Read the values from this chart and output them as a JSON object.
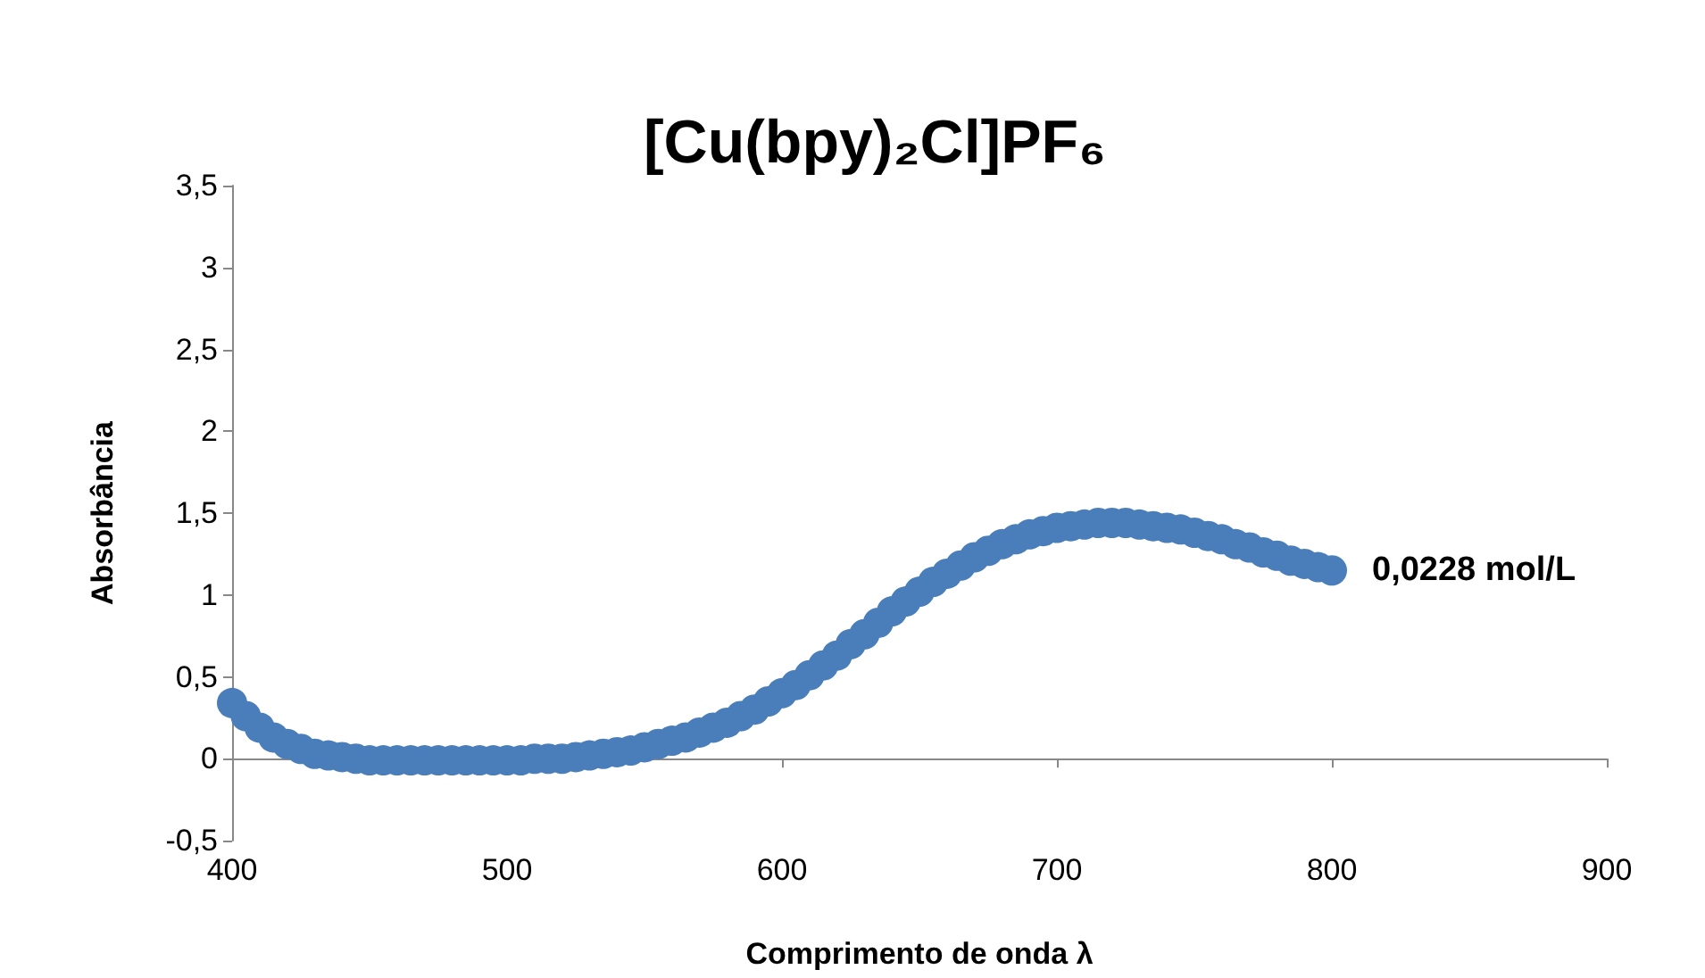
{
  "chart_data": {
    "type": "scatter",
    "title": "[Cu(bpy)₂Cl]PF₆",
    "xlabel": "Comprimento de onda λ",
    "ylabel": "Absorbância",
    "xlim": [
      400,
      900
    ],
    "xticks": [
      400,
      500,
      600,
      700,
      800,
      900
    ],
    "ylim": [
      -0.5,
      3.5
    ],
    "yticks": [
      {
        "value": -0.5,
        "label": "-0,5"
      },
      0,
      {
        "value": 0.5,
        "label": "0,5"
      },
      1,
      {
        "value": 1.5,
        "label": "1,5"
      },
      2,
      {
        "value": 2.5,
        "label": "2,5"
      },
      3,
      {
        "value": 3.5,
        "label": "3,5"
      }
    ],
    "legend": false,
    "marker": "circle",
    "series": [
      {
        "name": "0,0228 mol/L",
        "color": "#4a7ebb",
        "x": [
          400,
          405,
          410,
          415,
          420,
          425,
          430,
          435,
          440,
          445,
          450,
          455,
          460,
          465,
          470,
          475,
          480,
          485,
          490,
          495,
          500,
          505,
          510,
          515,
          520,
          525,
          530,
          535,
          540,
          545,
          550,
          555,
          560,
          565,
          570,
          575,
          580,
          585,
          590,
          595,
          600,
          605,
          610,
          615,
          620,
          625,
          630,
          635,
          640,
          645,
          650,
          655,
          660,
          665,
          670,
          675,
          680,
          685,
          690,
          695,
          700,
          705,
          710,
          715,
          720,
          725,
          730,
          735,
          740,
          745,
          750,
          755,
          760,
          765,
          770,
          775,
          780,
          785,
          790,
          795,
          800
        ],
        "values": [
          0.34,
          0.26,
          0.19,
          0.13,
          0.09,
          0.06,
          0.03,
          0.02,
          0.01,
          0,
          -0.01,
          -0.01,
          -0.01,
          -0.01,
          -0.01,
          -0.01,
          -0.01,
          -0.01,
          -0.01,
          -0.01,
          -0.01,
          -0.01,
          0,
          0,
          0,
          0.01,
          0.02,
          0.03,
          0.04,
          0.05,
          0.07,
          0.09,
          0.11,
          0.13,
          0.16,
          0.19,
          0.22,
          0.26,
          0.3,
          0.35,
          0.4,
          0.45,
          0.51,
          0.57,
          0.63,
          0.7,
          0.76,
          0.83,
          0.9,
          0.96,
          1.02,
          1.08,
          1.13,
          1.18,
          1.23,
          1.27,
          1.31,
          1.34,
          1.37,
          1.39,
          1.41,
          1.42,
          1.43,
          1.44,
          1.44,
          1.44,
          1.43,
          1.42,
          1.41,
          1.4,
          1.38,
          1.36,
          1.34,
          1.31,
          1.29,
          1.26,
          1.24,
          1.21,
          1.19,
          1.17,
          1.15
        ]
      }
    ]
  }
}
